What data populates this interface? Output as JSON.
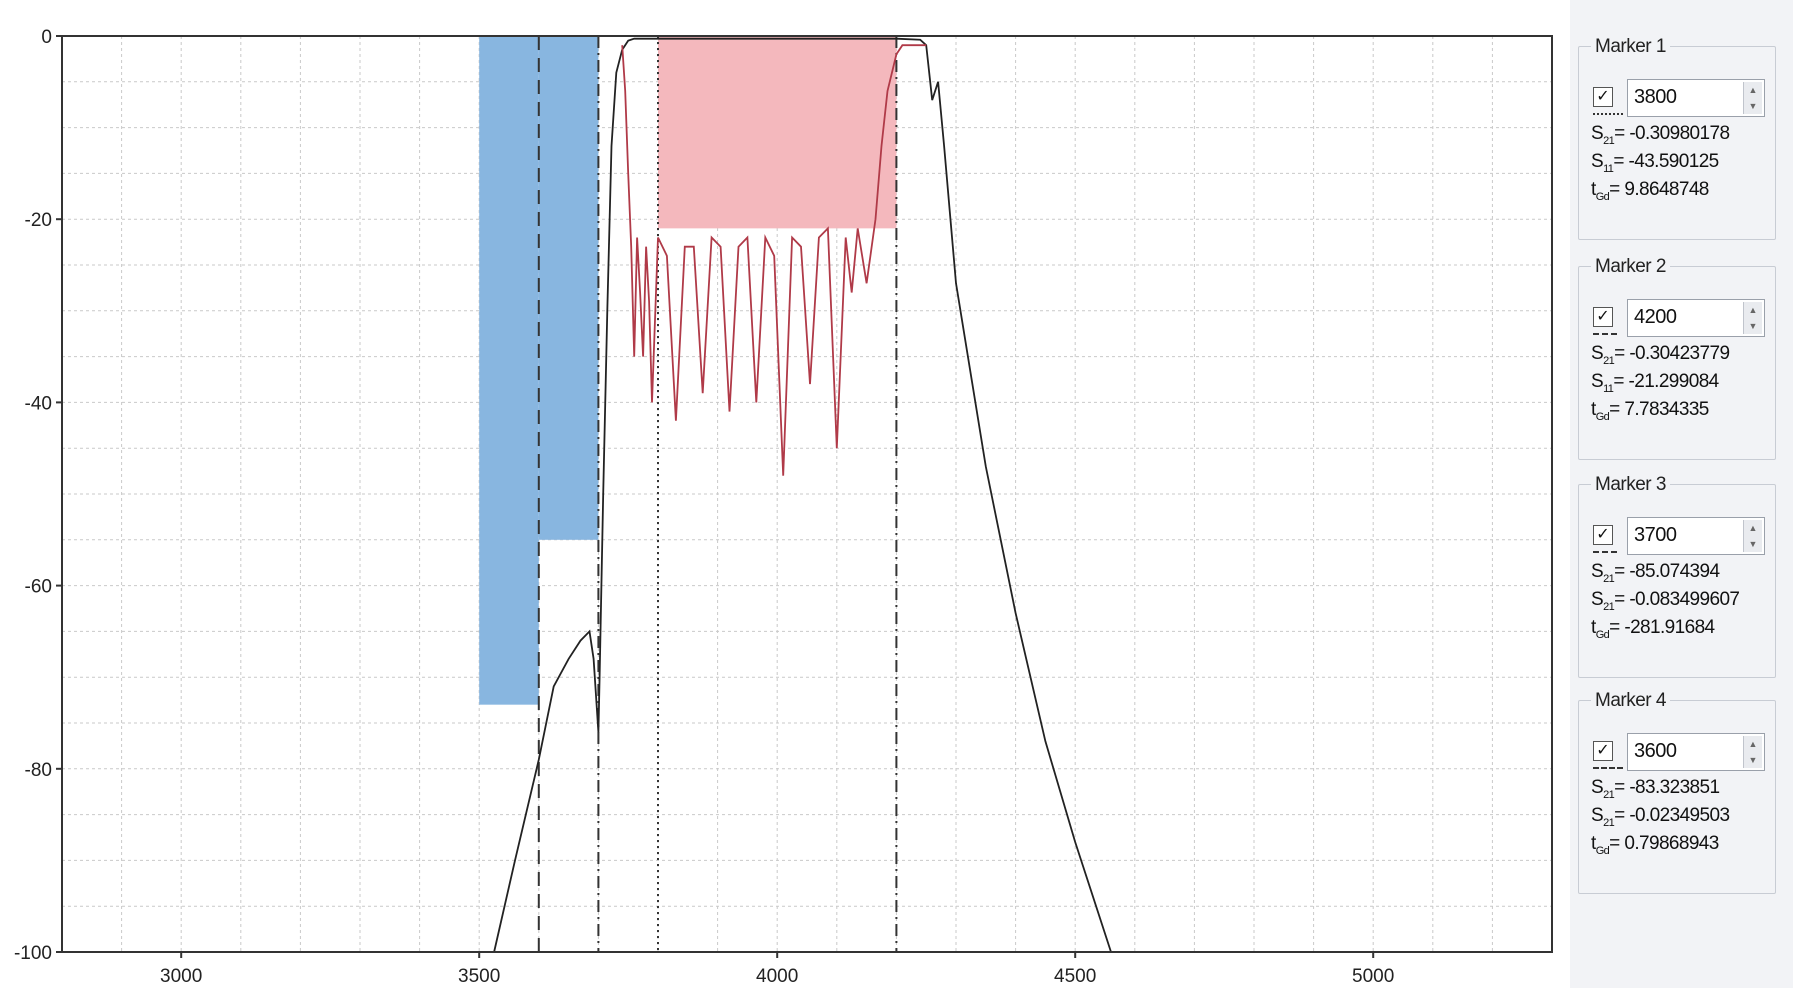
{
  "chart_data": {
    "type": "line",
    "xlim": [
      2800,
      5300
    ],
    "ylim": [
      -100,
      0
    ],
    "x_ticks": [
      "3000",
      "3500",
      "4000",
      "4500",
      "5000"
    ],
    "y_ticks": [
      "0",
      "-20",
      "-40",
      "-60",
      "-80",
      "-100"
    ],
    "grid": true,
    "shaded_regions": [
      {
        "x": [
          3500,
          3600
        ],
        "y": [
          -73,
          0
        ],
        "color": "#88b6e0"
      },
      {
        "x": [
          3600,
          3700
        ],
        "y": [
          -55,
          0
        ],
        "color": "#88b6e0"
      },
      {
        "x": [
          3800,
          4200
        ],
        "y": [
          -21,
          0
        ],
        "color": "#f4b8bd"
      }
    ],
    "marker_lines": [
      {
        "x": 3600,
        "style": "dashed"
      },
      {
        "x": 3700,
        "style": "dashdot"
      },
      {
        "x": 3800,
        "style": "dotted"
      },
      {
        "x": 4200,
        "style": "dashdot"
      }
    ],
    "series": [
      {
        "color": "#222222",
        "x": [
          3525,
          3560,
          3600,
          3625,
          3650,
          3670,
          3685,
          3692,
          3697,
          3700,
          3702,
          3708,
          3715,
          3722,
          3730,
          3740,
          3750,
          3760,
          3770,
          3780,
          3800,
          4000,
          4200,
          4240,
          4250,
          4255,
          4260,
          4270,
          4280,
          4300,
          4350,
          4400,
          4450,
          4500,
          4560
        ],
        "y": [
          -100,
          -90,
          -79,
          -71,
          -68,
          -66,
          -65,
          -68,
          -73,
          -76,
          -70,
          -50,
          -30,
          -12,
          -4,
          -1.5,
          -0.5,
          -0.3,
          -0.3,
          -0.3,
          -0.3,
          -0.3,
          -0.3,
          -0.4,
          -1,
          -4,
          -7,
          -5,
          -12,
          -27,
          -47,
          -63,
          -77,
          -88,
          -100
        ]
      },
      {
        "color": "#b03a48",
        "x": [
          3740,
          3745,
          3750,
          3755,
          3760,
          3765,
          3770,
          3775,
          3780,
          3785,
          3790,
          3800,
          3815,
          3830,
          3845,
          3860,
          3875,
          3890,
          3905,
          3920,
          3935,
          3950,
          3965,
          3980,
          3995,
          4010,
          4025,
          4040,
          4055,
          4070,
          4085,
          4100,
          4115,
          4125,
          4135,
          4150,
          4165,
          4175,
          4185,
          4200,
          4210,
          4215,
          4220,
          4228,
          4235,
          4240,
          4245,
          4250
        ],
        "y": [
          -1,
          -6,
          -15,
          -23,
          -35,
          -22,
          -28,
          -35,
          -23,
          -29,
          -40,
          -22,
          -24,
          -42,
          -23,
          -23,
          -39,
          -22,
          -23,
          -41,
          -23,
          -22,
          -40,
          -22,
          -24,
          -48,
          -22,
          -23,
          -38,
          -22,
          -21,
          -45,
          -22,
          -28,
          -21,
          -27,
          -20,
          -12,
          -6,
          -2,
          -1,
          -1,
          -1,
          -1,
          -1,
          -1,
          -1,
          -1
        ]
      }
    ]
  },
  "markers": [
    {
      "title": "Marker 1",
      "value": "3800",
      "m1_sub": "21",
      "m1_val": "-0.30980178",
      "m2_sub": "11",
      "m2_val": "-43.590125",
      "m3_sub": "Gd",
      "m3_val": "9.8648748"
    },
    {
      "title": "Marker 2",
      "value": "4200",
      "m1_sub": "21",
      "m1_val": "-0.30423779",
      "m2_sub": "11",
      "m2_val": "-21.299084",
      "m3_sub": "Gd",
      "m3_val": "7.7834335"
    },
    {
      "title": "Marker 3",
      "value": "3700",
      "m1_sub": "21",
      "m1_val": "-85.074394",
      "m2_sub": "21",
      "m2_val": "-0.083499607",
      "m3_sub": "Gd",
      "m3_val": "-281.91684"
    },
    {
      "title": "Marker 4",
      "value": "3600",
      "m1_sub": "21",
      "m1_val": "-83.323851",
      "m2_sub": "21",
      "m2_val": "-0.02349503",
      "m3_sub": "Gd",
      "m3_val": "0.79868943"
    }
  ],
  "labels": {
    "s": "S",
    "t": "t",
    "eq": "= "
  },
  "icons": {
    "checkbox": "checkbox-checked-icon",
    "spin_up": "arrow-up-icon",
    "spin_down": "arrow-down-icon"
  }
}
